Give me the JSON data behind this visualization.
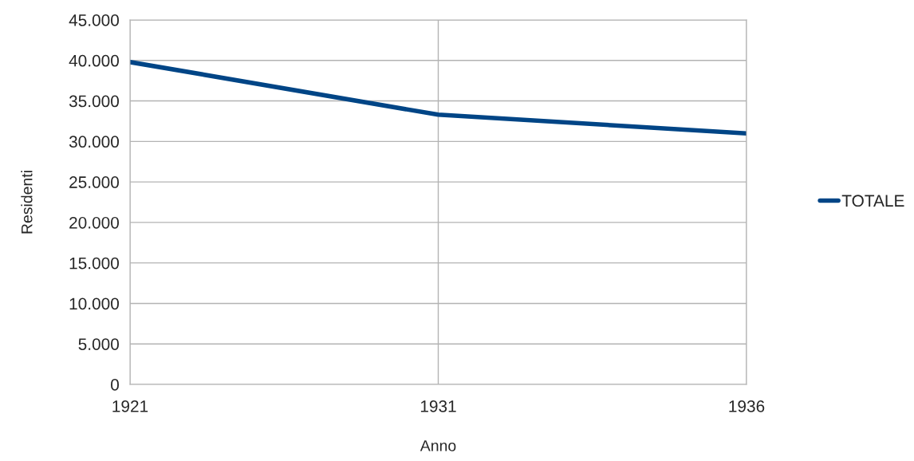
{
  "chart_data": {
    "type": "line",
    "xlabel": "Anno",
    "ylabel": "Residenti",
    "categories": [
      "1921",
      "1931",
      "1936"
    ],
    "series": [
      {
        "name": "TOTALE",
        "color": "#004586",
        "values": [
          39800,
          33300,
          31000
        ]
      }
    ],
    "ylim": [
      0,
      45000
    ],
    "yticks": [
      {
        "value": 0,
        "label": "0"
      },
      {
        "value": 5000,
        "label": "5.000"
      },
      {
        "value": 10000,
        "label": "10.000"
      },
      {
        "value": 15000,
        "label": "15.000"
      },
      {
        "value": 20000,
        "label": "20.000"
      },
      {
        "value": 25000,
        "label": "25.000"
      },
      {
        "value": 30000,
        "label": "30.000"
      },
      {
        "value": 35000,
        "label": "35.000"
      },
      {
        "value": 40000,
        "label": "40.000"
      },
      {
        "value": 45000,
        "label": "45.000"
      }
    ],
    "grid": true,
    "legend": "right",
    "marker": "none",
    "line_style": "solid"
  }
}
